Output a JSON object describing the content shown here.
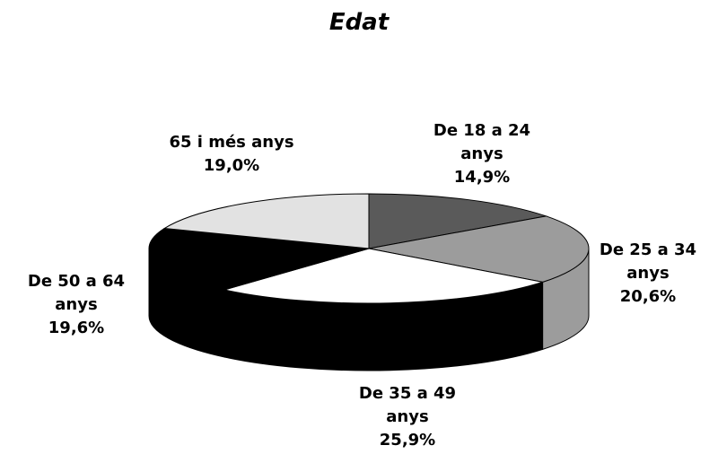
{
  "chart_data": {
    "type": "pie3d",
    "title": "Edat",
    "categories": [
      "De 18 a 24 anys",
      "De 25 a 34 anys",
      "De 35 a 49 anys",
      "De 50 a 64 anys",
      "65 i més anys"
    ],
    "values": [
      14.9,
      20.6,
      25.9,
      19.6,
      19.0
    ],
    "value_labels": [
      "14,9%",
      "20,6%",
      "25,9%",
      "19,6%",
      "19,0%"
    ],
    "colors": [
      "#5a5a5a",
      "#9c9c9c",
      "#ffffff",
      "#000000",
      "#e2e2e2"
    ]
  }
}
